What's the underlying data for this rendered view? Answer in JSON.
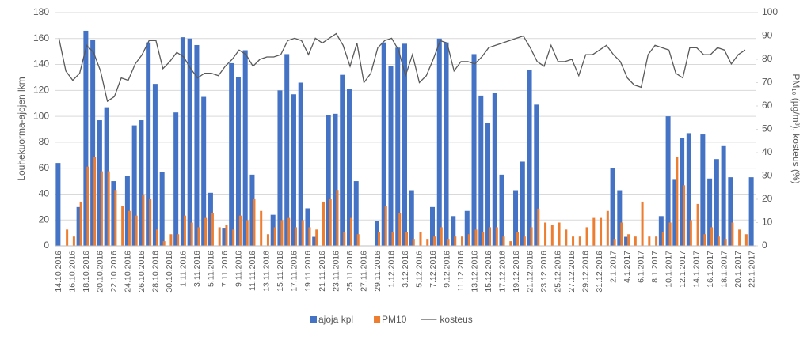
{
  "chart_data": {
    "type": "bar-line",
    "y_label": "Louhekuorma-ajojen lkm",
    "y2_label": "PM₁₀ (µg/m³), kosteus (%)",
    "categories": [
      "14.10.2016",
      null,
      "16.10.2016",
      null,
      "18.10.2016",
      null,
      "20.10.2016",
      null,
      "22.10.2016",
      null,
      "24.10.2016",
      null,
      "26.10.2016",
      null,
      "28.10.2016",
      null,
      "30.10.2016",
      null,
      "1.11.2016",
      null,
      "3.11.2016",
      null,
      "5.11.2016",
      null,
      "7.11.2016",
      null,
      "9.11.2016",
      null,
      "11.11.2016",
      null,
      "13.11.2016",
      null,
      "15.11.2016",
      null,
      "17.11.2016",
      null,
      "19.11.2016",
      null,
      "21.11.2016",
      null,
      "23.11.2016",
      null,
      "25.11.2016",
      null,
      "27.11.2016",
      null,
      "29.11.2016",
      null,
      "1.12.2016",
      null,
      "3.12.2016",
      null,
      "5.12.2016",
      null,
      "7.12.2016",
      null,
      "9.12.2016",
      null,
      "11.12.2016",
      null,
      "13.12.2016",
      null,
      "15.12.2016",
      null,
      "17.12.2016",
      null,
      "19.12.2016",
      null,
      "21.12.2016",
      null,
      "23.12.2016",
      null,
      "25.12.2016",
      null,
      "27.12.2016",
      null,
      "29.12.2016",
      null,
      "31.12.2016",
      null,
      "2.1.2017",
      null,
      "4.1.2017",
      null,
      "6.1.2017",
      null,
      "8.1.2017",
      null,
      "10.1.2017",
      null,
      "12.1.2017",
      null,
      "14.1.2017",
      null,
      "16.1.2017",
      null,
      "18.1.2017",
      null,
      "20.1.2017",
      null,
      "22.1.2017"
    ],
    "series": [
      {
        "name": "ajoja kpl",
        "kind": "bar",
        "axis": "y",
        "color": "#4472c4",
        "values": [
          64,
          null,
          null,
          30,
          166,
          159,
          97,
          107,
          50,
          null,
          54,
          93,
          97,
          157,
          125,
          57,
          null,
          103,
          161,
          160,
          155,
          115,
          41,
          null,
          14,
          141,
          130,
          151,
          55,
          null,
          null,
          24,
          120,
          148,
          117,
          126,
          29,
          7,
          null,
          101,
          102,
          132,
          121,
          50,
          null,
          null,
          19,
          157,
          139,
          153,
          156,
          43,
          null,
          null,
          30,
          160,
          157,
          23,
          null,
          27,
          148,
          116,
          95,
          118,
          55,
          null,
          43,
          65,
          136,
          109,
          null,
          null,
          null,
          null,
          null,
          null,
          null,
          null,
          null,
          null,
          60,
          43,
          7,
          null,
          null,
          null,
          null,
          23,
          100,
          51,
          83,
          87,
          null,
          86,
          52,
          67,
          77,
          53,
          null,
          null,
          53
        ]
      },
      {
        "name": "PM10",
        "kind": "bar",
        "axis": "y2",
        "color": "#ed7d31",
        "values": [
          null,
          7,
          4,
          19,
          34,
          38,
          32,
          32,
          24,
          17,
          15,
          13,
          22,
          20,
          7,
          2,
          5,
          5,
          13,
          10,
          8,
          12,
          14,
          8,
          9,
          7,
          13,
          11,
          20,
          15,
          5,
          8,
          11,
          12,
          8,
          11,
          8,
          7,
          19,
          20,
          24,
          6,
          12,
          5,
          null,
          null,
          6,
          17,
          6,
          14,
          6,
          3,
          6,
          3,
          4,
          8,
          3,
          4,
          4,
          5,
          7,
          6,
          8,
          8,
          4,
          2,
          6,
          4,
          8,
          16,
          10,
          9,
          10,
          7,
          4,
          4,
          8,
          12,
          12,
          15,
          3,
          10,
          5,
          4,
          19,
          4,
          4,
          6,
          10,
          38,
          26,
          11,
          18,
          5,
          8,
          4,
          3,
          10,
          7,
          5,
          null
        ]
      },
      {
        "name": "kosteus",
        "kind": "line",
        "axis": "y2",
        "color": "#595959",
        "values": [
          89,
          75,
          71,
          74,
          86,
          83,
          75,
          62,
          64,
          72,
          71,
          78,
          82,
          88,
          88,
          76,
          79,
          83,
          81,
          76,
          72,
          74,
          74,
          73,
          77,
          80,
          84,
          82,
          77,
          80,
          81,
          81,
          82,
          88,
          89,
          88,
          82,
          89,
          87,
          89,
          91,
          86,
          77,
          87,
          70,
          74,
          85,
          88,
          89,
          84,
          73,
          82,
          70,
          73,
          80,
          88,
          87,
          75,
          79,
          79,
          78,
          81,
          85,
          86,
          87,
          88,
          89,
          90,
          85,
          79,
          77,
          86,
          79,
          79,
          80,
          73,
          82,
          82,
          84,
          86,
          82,
          79,
          72,
          69,
          68,
          82,
          86,
          85,
          84,
          74,
          72,
          85,
          85,
          82,
          82,
          85,
          84,
          78,
          82,
          84,
          null
        ]
      }
    ],
    "ylim": [
      0,
      180
    ],
    "yticks": [
      0,
      20,
      40,
      60,
      80,
      100,
      120,
      140,
      160,
      180
    ],
    "y2lim": [
      0,
      100
    ],
    "y2ticks": [
      0,
      10,
      20,
      30,
      40,
      50,
      60,
      70,
      80,
      90,
      100
    ],
    "grid": true,
    "legend": "bottom"
  }
}
